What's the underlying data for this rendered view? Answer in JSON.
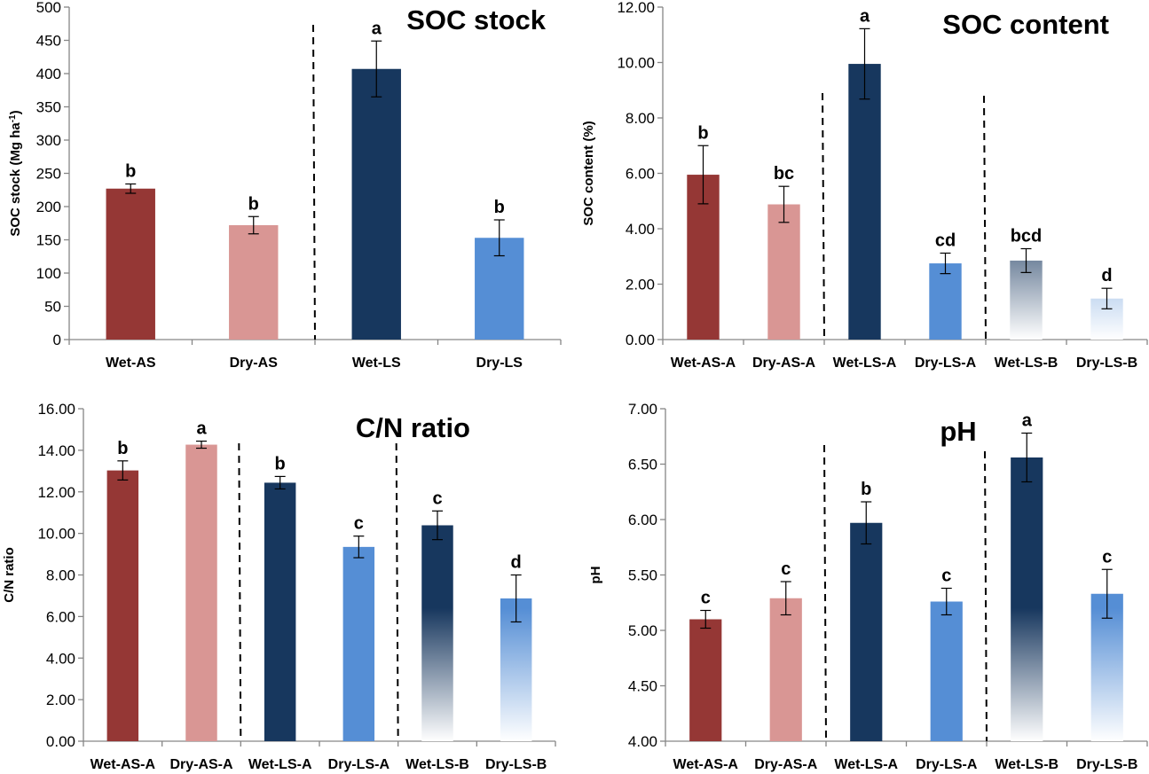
{
  "colors": {
    "wet_as": "#953735",
    "dry_as": "#D99694",
    "wet_ls": "#17375E",
    "dry_ls": "#558ED5",
    "axis": "#868686"
  },
  "chart_data": [
    {
      "id": "soc-stock",
      "type": "bar",
      "title": "SOC stock",
      "xlabel": "",
      "ylabel": "SOC stock (Mg ha",
      "ylabel_sup": "-1",
      "ylabel_tail": ")",
      "ylim": [
        0,
        500
      ],
      "yticks": [
        0,
        50,
        100,
        150,
        200,
        250,
        300,
        350,
        400,
        450,
        500
      ],
      "ytick_labels": [
        "0",
        "50",
        "100",
        "150",
        "200",
        "250",
        "300",
        "350",
        "400",
        "450",
        "500"
      ],
      "categories": [
        "Wet-AS",
        "Dry-AS",
        "Wet-LS",
        "Dry-LS"
      ],
      "values": [
        227,
        172,
        407,
        153
      ],
      "errors": [
        7,
        13,
        42,
        27
      ],
      "significance": [
        "b",
        "b",
        "a",
        "b"
      ],
      "bar_styles": [
        "wet_as",
        "dry_as",
        "wet_ls",
        "dry_ls"
      ],
      "gradient": [
        false,
        false,
        false,
        false
      ],
      "dividers_after": [
        2
      ],
      "grid": false,
      "legend": "none"
    },
    {
      "id": "soc-content",
      "type": "bar",
      "title": "SOC content",
      "xlabel": "",
      "ylabel": "SOC content (%)",
      "ylim": [
        0,
        12
      ],
      "yticks": [
        0,
        2,
        4,
        6,
        8,
        10,
        12
      ],
      "ytick_labels": [
        "0.00",
        "2.00",
        "4.00",
        "6.00",
        "8.00",
        "10.00",
        "12.00"
      ],
      "categories": [
        "Wet-AS-A",
        "Dry-AS-A",
        "Wet-LS-A",
        "Dry-LS-A",
        "Wet-LS-B",
        "Dry-LS-B"
      ],
      "values": [
        5.95,
        4.88,
        9.95,
        2.75,
        2.85,
        1.48
      ],
      "errors": [
        1.05,
        0.65,
        1.27,
        0.37,
        0.43,
        0.37
      ],
      "significance": [
        "b",
        "bc",
        "a",
        "cd",
        "bcd",
        "d"
      ],
      "bar_styles": [
        "wet_as",
        "dry_as",
        "wet_ls",
        "dry_ls",
        "wet_ls",
        "dry_ls"
      ],
      "gradient": [
        false,
        false,
        false,
        false,
        true,
        true
      ],
      "dividers_after": [
        2,
        4
      ],
      "grid": false,
      "legend": "none"
    },
    {
      "id": "cn-ratio",
      "type": "bar",
      "title": "C/N ratio",
      "xlabel": "",
      "ylabel": "C/N ratio",
      "ylim": [
        0,
        16
      ],
      "yticks": [
        0,
        2,
        4,
        6,
        8,
        10,
        12,
        14,
        16
      ],
      "ytick_labels": [
        "0.00",
        "2.00",
        "4.00",
        "6.00",
        "8.00",
        "10.00",
        "12.00",
        "14.00",
        "16.00"
      ],
      "categories": [
        "Wet-AS-A",
        "Dry-AS-A",
        "Wet-LS-A",
        "Dry-LS-A",
        "Wet-LS-B",
        "Dry-LS-B"
      ],
      "values": [
        13.03,
        14.27,
        12.44,
        9.35,
        10.39,
        6.87
      ],
      "errors": [
        0.46,
        0.17,
        0.3,
        0.52,
        0.69,
        1.13
      ],
      "significance": [
        "b",
        "a",
        "b",
        "c",
        "c",
        "d"
      ],
      "bar_styles": [
        "wet_as",
        "dry_as",
        "wet_ls",
        "dry_ls",
        "wet_ls",
        "dry_ls"
      ],
      "gradient": [
        false,
        false,
        false,
        false,
        true,
        true
      ],
      "dividers_after": [
        2,
        4
      ],
      "grid": false,
      "legend": "none"
    },
    {
      "id": "ph",
      "type": "bar",
      "title": "pH",
      "xlabel": "",
      "ylabel": "pH",
      "ylim": [
        4,
        7
      ],
      "yticks": [
        4,
        4.5,
        5,
        5.5,
        6,
        6.5,
        7
      ],
      "ytick_labels": [
        "4.00",
        "4.50",
        "5.00",
        "5.50",
        "6.00",
        "6.50",
        "7.00"
      ],
      "categories": [
        "Wet-AS-A",
        "Dry-AS-A",
        "Wet-LS-A",
        "Dry-LS-A",
        "Wet-LS-B",
        "Dry-LS-B"
      ],
      "values": [
        5.1,
        5.29,
        5.97,
        5.26,
        6.56,
        5.33
      ],
      "errors": [
        0.08,
        0.15,
        0.19,
        0.12,
        0.22,
        0.22
      ],
      "significance": [
        "c",
        "c",
        "b",
        "c",
        "a",
        "c"
      ],
      "bar_styles": [
        "wet_as",
        "dry_as",
        "wet_ls",
        "dry_ls",
        "wet_ls",
        "dry_ls"
      ],
      "gradient": [
        false,
        false,
        false,
        false,
        true,
        true
      ],
      "dividers_after": [
        2,
        4
      ],
      "grid": false,
      "legend": "none"
    }
  ]
}
